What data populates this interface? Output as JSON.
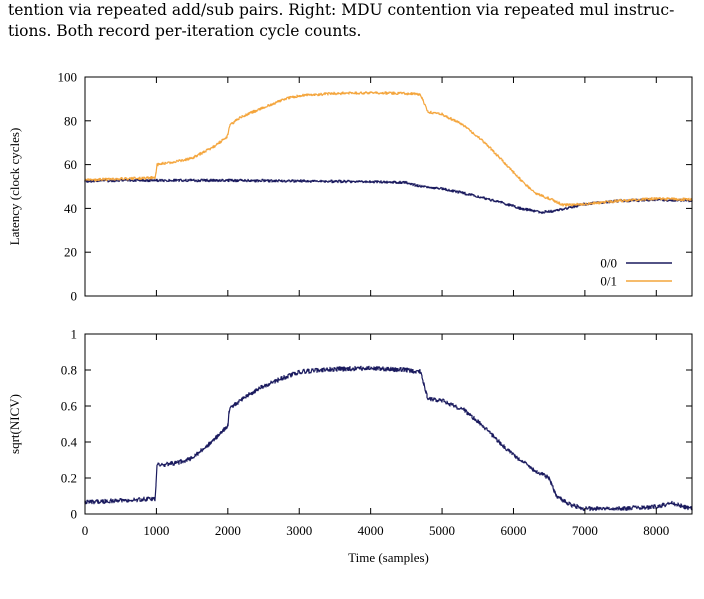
{
  "caption": {
    "line1": "tention via repeated add/sub pairs. Right: MDU contention via repeated mul instruc-",
    "line2": "tions. Both record per-iteration cycle counts."
  },
  "chart_data": [
    {
      "type": "line",
      "ylabel": "Latency (clock cycles)",
      "xlim": [
        0,
        8500
      ],
      "ylim": [
        0,
        100
      ],
      "xticks": [
        0,
        1000,
        2000,
        3000,
        4000,
        5000,
        6000,
        7000,
        8000
      ],
      "yticks": [
        0,
        20,
        40,
        60,
        80,
        100
      ],
      "xtick_labels_shown": false,
      "grid": false,
      "legend": "bottom-right",
      "series": [
        {
          "name": "0/0",
          "color": "#1a1a5e",
          "points": [
            [
              0,
              52.5
            ],
            [
              500,
              52.8
            ],
            [
              1000,
              52.8
            ],
            [
              2000,
              52.8
            ],
            [
              3000,
              52.5
            ],
            [
              4000,
              52.2
            ],
            [
              4500,
              51.8
            ],
            [
              4700,
              50
            ],
            [
              5000,
              49
            ],
            [
              5300,
              47
            ],
            [
              5800,
              43
            ],
            [
              6100,
              40
            ],
            [
              6400,
              38.2
            ],
            [
              6600,
              39
            ],
            [
              6800,
              40.5
            ],
            [
              7000,
              42
            ],
            [
              7500,
              43.5
            ],
            [
              8000,
              44
            ],
            [
              8500,
              43.5
            ]
          ]
        },
        {
          "name": "0/1",
          "color": "#f4a53c",
          "points": [
            [
              0,
              53
            ],
            [
              500,
              53.5
            ],
            [
              990,
              54
            ],
            [
              1000,
              60
            ],
            [
              1300,
              61.5
            ],
            [
              1500,
              63
            ],
            [
              1800,
              68
            ],
            [
              2000,
              73
            ],
            [
              2020,
              78
            ],
            [
              2200,
              82
            ],
            [
              2500,
              86
            ],
            [
              2800,
              90
            ],
            [
              3000,
              91.5
            ],
            [
              3500,
              92.5
            ],
            [
              4000,
              92.8
            ],
            [
              4500,
              92.5
            ],
            [
              4700,
              92
            ],
            [
              4800,
              84
            ],
            [
              5000,
              83
            ],
            [
              5300,
              78
            ],
            [
              5600,
              70
            ],
            [
              5900,
              60
            ],
            [
              6100,
              53
            ],
            [
              6300,
              47
            ],
            [
              6500,
              44.5
            ],
            [
              6700,
              41.5
            ],
            [
              7000,
              42
            ],
            [
              7500,
              43.5
            ],
            [
              8000,
              44.5
            ],
            [
              8500,
              44
            ]
          ]
        }
      ]
    },
    {
      "type": "line",
      "xlabel": "Time (samples)",
      "ylabel": "sqrt(NICV)",
      "xlim": [
        0,
        8500
      ],
      "ylim": [
        0,
        1
      ],
      "xticks": [
        0,
        1000,
        2000,
        3000,
        4000,
        5000,
        6000,
        7000,
        8000
      ],
      "yticks": [
        0,
        0.2,
        0.4,
        0.6,
        0.8,
        1
      ],
      "grid": false,
      "series": [
        {
          "color": "#1a1a5e",
          "points": [
            [
              0,
              0.065
            ],
            [
              500,
              0.075
            ],
            [
              990,
              0.085
            ],
            [
              1000,
              0.27
            ],
            [
              1300,
              0.285
            ],
            [
              1500,
              0.31
            ],
            [
              1800,
              0.41
            ],
            [
              2000,
              0.49
            ],
            [
              2020,
              0.58
            ],
            [
              2200,
              0.64
            ],
            [
              2500,
              0.71
            ],
            [
              2800,
              0.76
            ],
            [
              3000,
              0.79
            ],
            [
              3500,
              0.805
            ],
            [
              4000,
              0.81
            ],
            [
              4500,
              0.8
            ],
            [
              4700,
              0.79
            ],
            [
              4800,
              0.64
            ],
            [
              5000,
              0.63
            ],
            [
              5300,
              0.58
            ],
            [
              5600,
              0.48
            ],
            [
              5900,
              0.36
            ],
            [
              6100,
              0.3
            ],
            [
              6300,
              0.24
            ],
            [
              6500,
              0.2
            ],
            [
              6600,
              0.1
            ],
            [
              6800,
              0.05
            ],
            [
              7000,
              0.03
            ],
            [
              7500,
              0.03
            ],
            [
              8000,
              0.04
            ],
            [
              8200,
              0.06
            ],
            [
              8500,
              0.03
            ]
          ]
        }
      ]
    }
  ]
}
